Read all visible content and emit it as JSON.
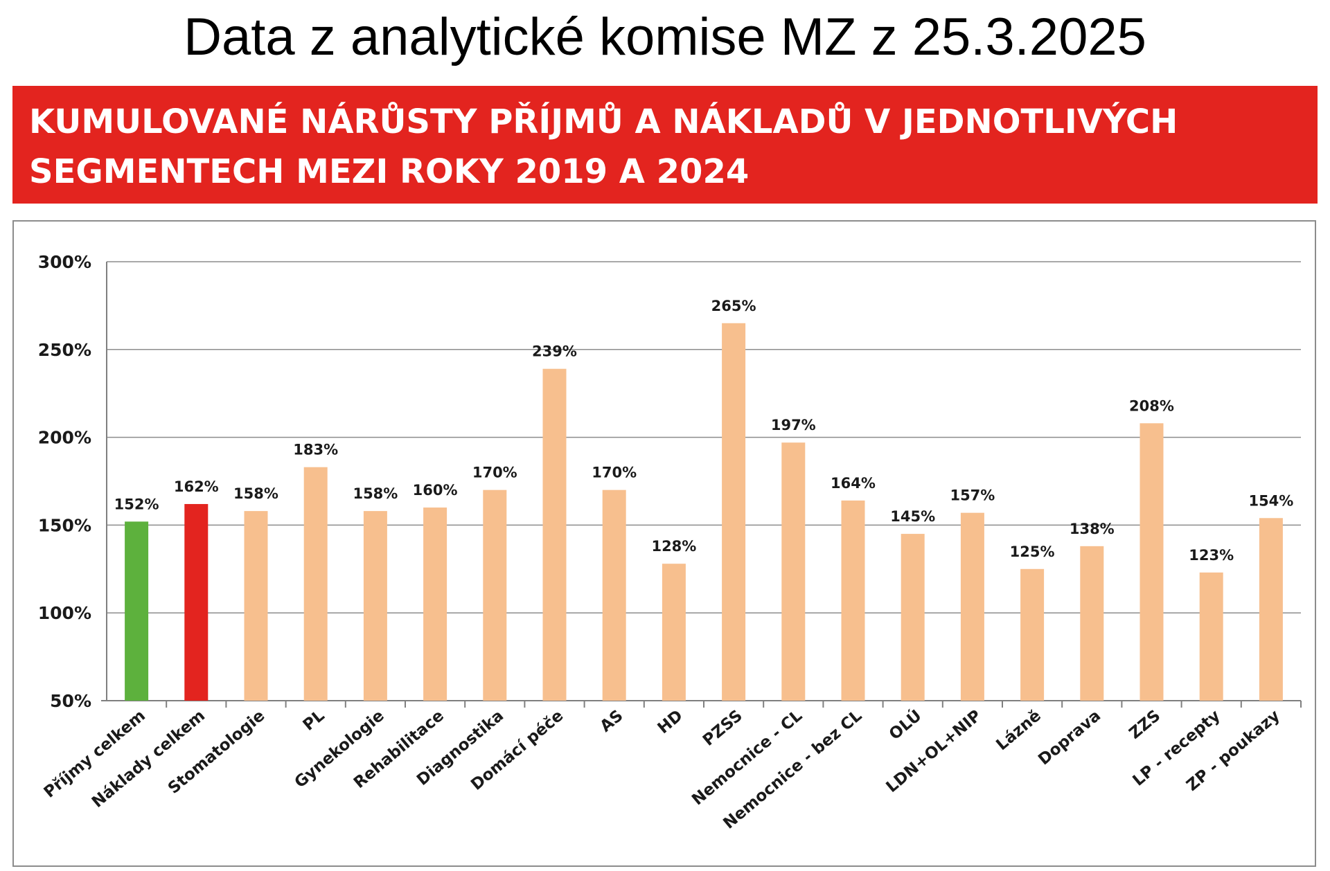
{
  "page": {
    "heading": "Data z analytické komise MZ z 25.3.2025"
  },
  "banner": {
    "line1": "KUMULOVANÉ NÁRŮSTY PŘÍJMŮ A NÁKLADŮ V JEDNOTLIVÝCH",
    "line2": "SEGMENTECH MEZI ROKY 2019 A 2024",
    "color": "#e3241f"
  },
  "chart_data": {
    "type": "bar",
    "title": "KUMULOVANÉ NÁRŮSTY PŘÍJMŮ A NÁKLADŮ V JEDNOTLIVÝCH SEGMENTECH MEZI ROKY 2019 A 2024",
    "xlabel": "",
    "ylabel": "",
    "ylim": [
      50,
      300
    ],
    "y_ticks": [
      "50%",
      "100%",
      "150%",
      "200%",
      "250%",
      "300%"
    ],
    "y_tick_values": [
      50,
      100,
      150,
      200,
      250,
      300
    ],
    "grid": true,
    "legend": "none",
    "categories": [
      "Příjmy celkem",
      "Náklady celkem",
      "Stomatologie",
      "PL",
      "Gynekologie",
      "Rehabilitace",
      "Diagnostika",
      "Domácí péče",
      "AS",
      "HD",
      "PZSS",
      "Nemocnice - CL",
      "Nemocnice - bez CL",
      "OLÚ",
      "LDN+OL+NIP",
      "Lázně",
      "Doprava",
      "ZZS",
      "LP - recepty",
      "ZP - poukazy"
    ],
    "values": [
      152,
      162,
      158,
      183,
      158,
      160,
      170,
      239,
      170,
      128,
      265,
      197,
      164,
      145,
      157,
      125,
      138,
      208,
      123,
      154
    ],
    "value_labels": [
      "152%",
      "162%",
      "158%",
      "183%",
      "158%",
      "160%",
      "170%",
      "239%",
      "170%",
      "128%",
      "265%",
      "197%",
      "164%",
      "145%",
      "157%",
      "125%",
      "138%",
      "208%",
      "123%",
      "154%"
    ],
    "colors": [
      "#5db13d",
      "#e3241f",
      "#f7bf8e",
      "#f7bf8e",
      "#f7bf8e",
      "#f7bf8e",
      "#f7bf8e",
      "#f7bf8e",
      "#f7bf8e",
      "#f7bf8e",
      "#f7bf8e",
      "#f7bf8e",
      "#f7bf8e",
      "#f7bf8e",
      "#f7bf8e",
      "#f7bf8e",
      "#f7bf8e",
      "#f7bf8e",
      "#f7bf8e",
      "#f7bf8e"
    ]
  }
}
